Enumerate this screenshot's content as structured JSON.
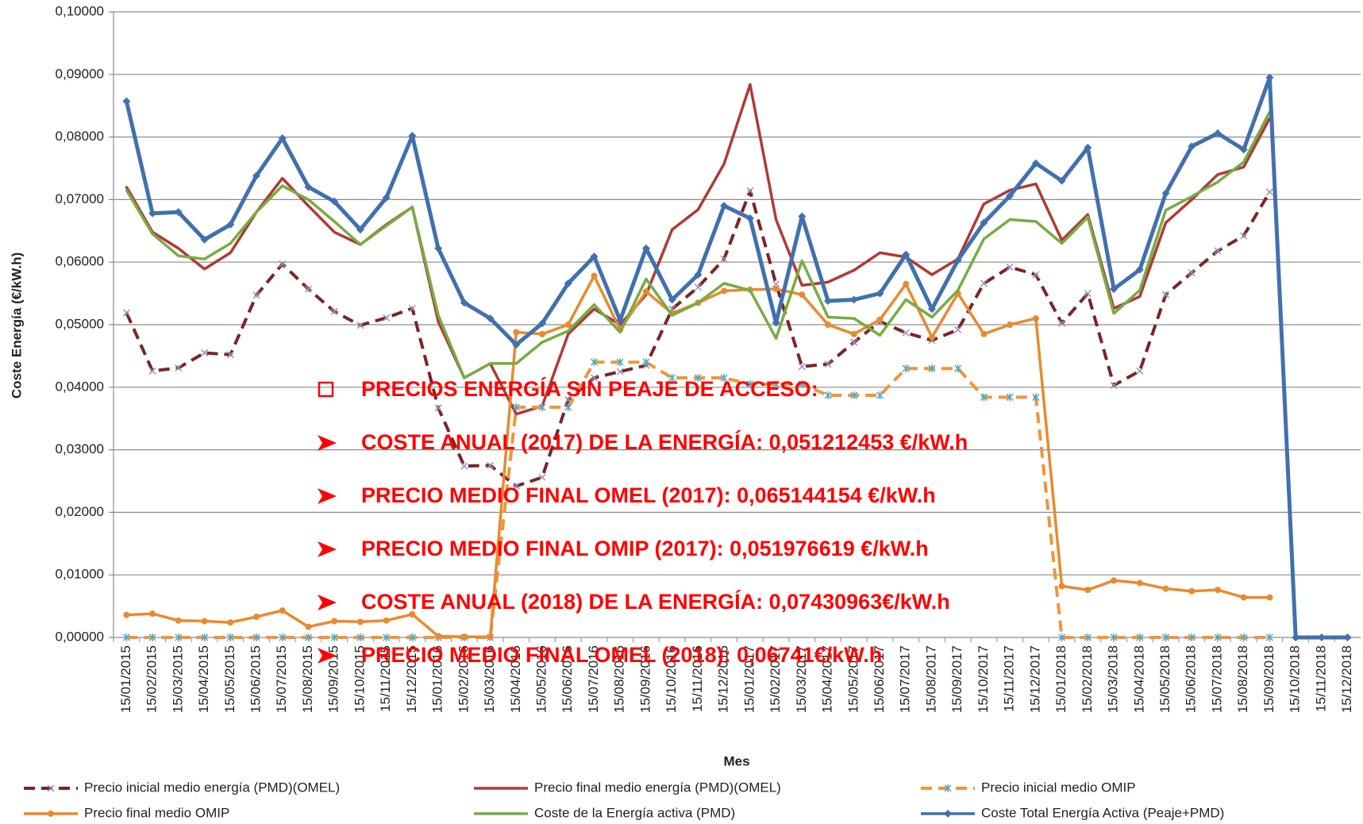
{
  "chart_data": {
    "type": "line",
    "y_label": "Coste Energía (€/kW.h)",
    "x_label": "Mes",
    "categories": [
      "15/01/2015",
      "15/02/2015",
      "15/03/2015",
      "15/04/2015",
      "15/05/2015",
      "15/06/2015",
      "15/07/2015",
      "15/08/2015",
      "15/09/2015",
      "15/10/2015",
      "15/11/2015",
      "15/12/2015",
      "15/01/2016",
      "15/02/2016",
      "15/03/2016",
      "15/04/2016",
      "15/05/2016",
      "15/06/2016",
      "15/07/2016",
      "15/08/2016",
      "15/09/2016",
      "15/10/2016",
      "15/11/2016",
      "15/12/2016",
      "15/01/2017",
      "15/02/2017",
      "15/03/2017",
      "15/04/2017",
      "15/05/2017",
      "15/06/2017",
      "15/07/2017",
      "15/08/2017",
      "15/09/2017",
      "15/10/2017",
      "15/11/2017",
      "15/12/2017",
      "15/01/2018",
      "15/02/2018",
      "15/03/2018",
      "15/04/2018",
      "15/05/2018",
      "15/06/2018",
      "15/07/2018",
      "15/08/2018",
      "15/09/2018",
      "15/10/2018",
      "15/11/2018",
      "15/12/2018"
    ],
    "ylim": [
      0,
      0.1
    ],
    "yticks": [
      {
        "value": 0,
        "label": "0,00000"
      },
      {
        "value": 0.01,
        "label": "0,01000"
      },
      {
        "value": 0.02,
        "label": "0,02000"
      },
      {
        "value": 0.03,
        "label": "0,03000"
      },
      {
        "value": 0.04,
        "label": "0,04000"
      },
      {
        "value": 0.05,
        "label": "0,05000"
      },
      {
        "value": 0.06,
        "label": "0,06000"
      },
      {
        "value": 0.07,
        "label": "0,07000"
      },
      {
        "value": 0.08,
        "label": "0,08000"
      },
      {
        "value": 0.09,
        "label": "0,09000"
      },
      {
        "value": 0.1,
        "label": "0,10000"
      }
    ],
    "grid": true,
    "legend": "bottom",
    "series": [
      {
        "name": "Precio inicial medio energía (PMD)(OMEL)",
        "color": "#7b2426",
        "dashed": true,
        "marker": "x",
        "values": [
          0.0519,
          0.0426,
          0.0431,
          0.0455,
          0.0452,
          0.0547,
          0.0597,
          0.0557,
          0.0521,
          0.0499,
          0.0511,
          0.0526,
          0.0367,
          0.0274,
          0.0275,
          0.0242,
          0.0256,
          0.038,
          0.0415,
          0.0425,
          0.0435,
          0.0525,
          0.056,
          0.0605,
          0.0714,
          0.0565,
          0.0433,
          0.0437,
          0.0472,
          0.0505,
          0.0487,
          0.0475,
          0.0492,
          0.0566,
          0.0592,
          0.058,
          0.0502,
          0.055,
          0.0403,
          0.0426,
          0.0548,
          0.0583,
          0.0618,
          0.0642,
          0.0712,
          null,
          null,
          null
        ]
      },
      {
        "name": "Precio final medio energía (PMD)(OMEL)",
        "color": "#b03a37",
        "dashed": false,
        "marker": "none",
        "values": [
          0.072,
          0.0648,
          0.0622,
          0.0589,
          0.0615,
          0.068,
          0.0734,
          0.069,
          0.0648,
          0.0628,
          0.066,
          0.0688,
          0.0505,
          0.0415,
          0.0438,
          0.0357,
          0.037,
          0.0485,
          0.0525,
          0.05,
          0.0548,
          0.0652,
          0.0684,
          0.0757,
          0.0884,
          0.0668,
          0.0563,
          0.0568,
          0.0587,
          0.0615,
          0.0608,
          0.058,
          0.0605,
          0.0693,
          0.0715,
          0.0725,
          0.0635,
          0.0676,
          0.0526,
          0.0545,
          0.0663,
          0.07,
          0.074,
          0.0752,
          0.083,
          null,
          null,
          null
        ]
      },
      {
        "name": "Precio inicial medio OMIP",
        "color": "#f0953a",
        "dashed": true,
        "marker": "star",
        "values": [
          0,
          0,
          0,
          0,
          0,
          0,
          0,
          0,
          0,
          0,
          0,
          0,
          0,
          0,
          0,
          0.0368,
          0.0368,
          0.0368,
          0.044,
          0.044,
          0.044,
          0.0415,
          0.0415,
          0.0415,
          0.0405,
          0.0405,
          0.0405,
          0.0387,
          0.0387,
          0.0387,
          0.043,
          0.043,
          0.043,
          0.0384,
          0.0384,
          0.0384,
          0,
          0,
          0,
          0,
          0,
          0,
          0,
          0,
          0,
          null,
          null,
          null
        ]
      },
      {
        "name": "Precio final medio OMIP",
        "color": "#e98a2e",
        "dashed": false,
        "marker": "circle",
        "values": [
          0.0036,
          0.0038,
          0.0027,
          0.0026,
          0.0024,
          0.0033,
          0.0043,
          0.0017,
          0.0026,
          0.0025,
          0.0027,
          0.0037,
          0.0002,
          0.0001,
          0.0001,
          0.0488,
          0.0485,
          0.05,
          0.0578,
          0.0492,
          0.0553,
          0.0518,
          0.0535,
          0.0554,
          0.0556,
          0.0557,
          0.0548,
          0.05,
          0.0485,
          0.0508,
          0.0565,
          0.048,
          0.055,
          0.0485,
          0.05,
          0.051,
          0.0082,
          0.0076,
          0.0091,
          0.0087,
          0.0078,
          0.0074,
          0.0076,
          0.0064,
          0.0064,
          null,
          null,
          null
        ]
      },
      {
        "name": "Coste de la Energía activa (PMD)",
        "color": "#77ac43",
        "dashed": false,
        "marker": "none",
        "values": [
          0.0715,
          0.0645,
          0.061,
          0.0605,
          0.063,
          0.068,
          0.0722,
          0.07,
          0.0665,
          0.0628,
          0.0658,
          0.0688,
          0.0515,
          0.0415,
          0.0438,
          0.0438,
          0.0472,
          0.049,
          0.0532,
          0.0488,
          0.0573,
          0.0515,
          0.0535,
          0.0566,
          0.0555,
          0.0478,
          0.0602,
          0.0512,
          0.051,
          0.0483,
          0.054,
          0.0512,
          0.0555,
          0.0637,
          0.0668,
          0.0665,
          0.063,
          0.0672,
          0.0518,
          0.0555,
          0.0683,
          0.0705,
          0.0728,
          0.076,
          0.084,
          null,
          null,
          null
        ]
      },
      {
        "name": "Coste Total Energía Activa (Peaje+PMD)",
        "color": "#4170ae",
        "dashed": false,
        "marker": "diamond",
        "values": [
          0.0857,
          0.0678,
          0.068,
          0.0636,
          0.066,
          0.0738,
          0.0798,
          0.072,
          0.0697,
          0.0652,
          0.0703,
          0.0802,
          0.0622,
          0.0535,
          0.051,
          0.0468,
          0.0502,
          0.0566,
          0.0609,
          0.0507,
          0.0622,
          0.054,
          0.058,
          0.069,
          0.067,
          0.0503,
          0.0673,
          0.0538,
          0.054,
          0.055,
          0.0612,
          0.0525,
          0.0603,
          0.0663,
          0.0706,
          0.0758,
          0.073,
          0.0783,
          0.0557,
          0.0588,
          0.071,
          0.0785,
          0.0806,
          0.078,
          0.0895,
          0,
          0,
          0
        ]
      }
    ],
    "annotations": [
      "PRECIOS ENERGÍA SIN PEAJE DE ACCESO:",
      "COSTE ANUAL (2017) DE LA ENERGÍA: 0,051212453 €/kW.h",
      "PRECIO MEDIO FINAL OMEL (2017): 0,065144154 €/kW.h",
      "PRECIO MEDIO FINAL OMIP (2017): 0,051976619 €/kW.h",
      "COSTE  ANUAL (2018) DE LA ENERGÍA: 0,07430963€/kW.h",
      "PRECIO MEDIO FINAL OMEL (2018): 0,06741€/kW.h"
    ]
  }
}
